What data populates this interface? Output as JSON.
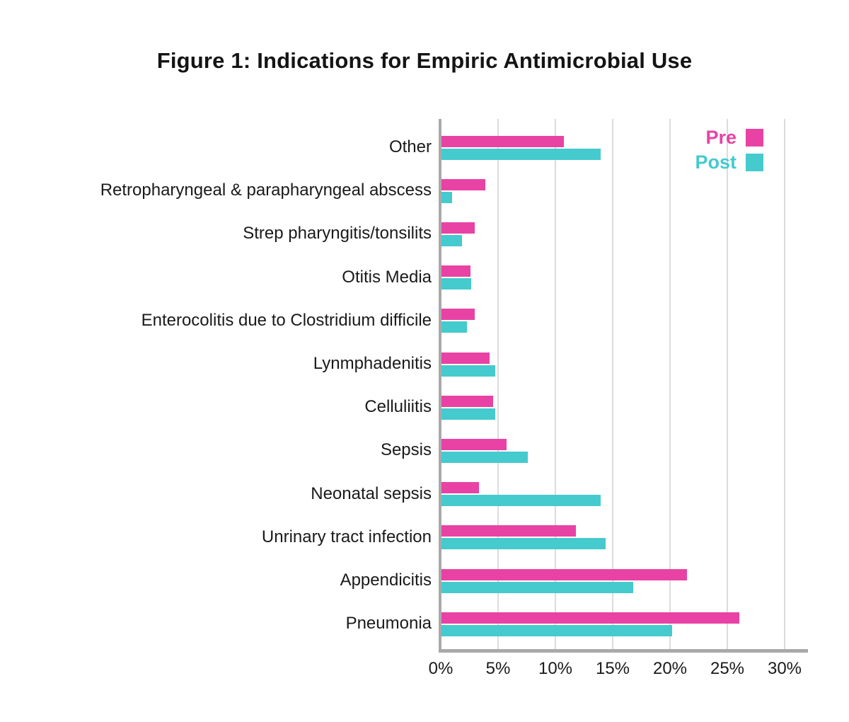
{
  "chart_data": {
    "type": "bar",
    "orientation": "horizontal",
    "title": "Figure 1: Indications for Empiric Antimicrobial Use",
    "categories_top_to_bottom": [
      "Other",
      "Retropharyngeal & parapharyngeal abscess",
      "Strep pharyngitis/tonsilits",
      "Otitis Media",
      "Enterocolitis due to Clostridium difficile",
      "Lynmphadenitis",
      "Celluliitis",
      "Sepsis",
      "Neonatal sepsis",
      "Unrinary tract infection",
      "Appendicitis",
      "Pneumonia"
    ],
    "series": [
      {
        "name": "Pre",
        "color": "#E843A4",
        "values": [
          10.7,
          3.8,
          2.9,
          2.5,
          2.9,
          4.2,
          4.5,
          5.7,
          3.3,
          11.7,
          21.4,
          26.0
        ]
      },
      {
        "name": "Post",
        "color": "#45CACE",
        "values": [
          13.9,
          0.9,
          1.8,
          2.6,
          2.2,
          4.7,
          4.7,
          7.5,
          13.9,
          14.3,
          16.7,
          20.1
        ]
      }
    ],
    "value_unit": "percent",
    "xlabel": "",
    "ylabel": "",
    "x_tick_labels": [
      "0%",
      "5%",
      "10%",
      "15%",
      "20%",
      "25%",
      "30%"
    ],
    "xlim": [
      0,
      30
    ],
    "grid": "vertical-gridlines",
    "legend_position": "top-right"
  },
  "colors": {
    "gridline": "#DCDCDC",
    "axis": "#A9A9A9",
    "text": "#1A1A1A",
    "background": "#FFFFFF"
  }
}
